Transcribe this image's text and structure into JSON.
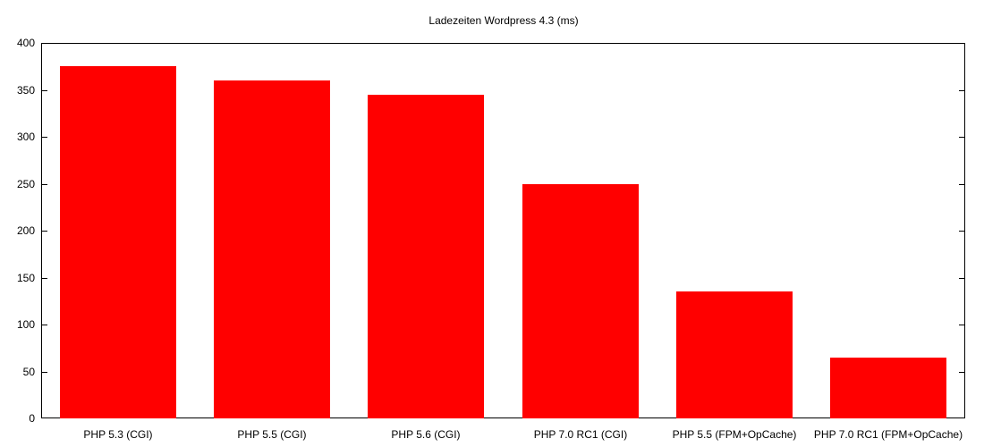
{
  "chart_data": {
    "type": "bar",
    "title": "Ladezeiten Wordpress 4.3 (ms)",
    "xlabel": "",
    "ylabel": "",
    "ylim": [
      0,
      400
    ],
    "yticks": [
      0,
      50,
      100,
      150,
      200,
      250,
      300,
      350,
      400
    ],
    "grid": false,
    "legend": null,
    "bar_color": "#ff0000",
    "categories": [
      "PHP 5.3 (CGI)",
      "PHP 5.5 (CGI)",
      "PHP 5.6 (CGI)",
      "PHP 7.0 RC1 (CGI)",
      "PHP 5.5 (FPM+OpCache)",
      "PHP 7.0 RC1 (FPM+OpCache)"
    ],
    "values": [
      375,
      360,
      345,
      250,
      135,
      65
    ]
  }
}
